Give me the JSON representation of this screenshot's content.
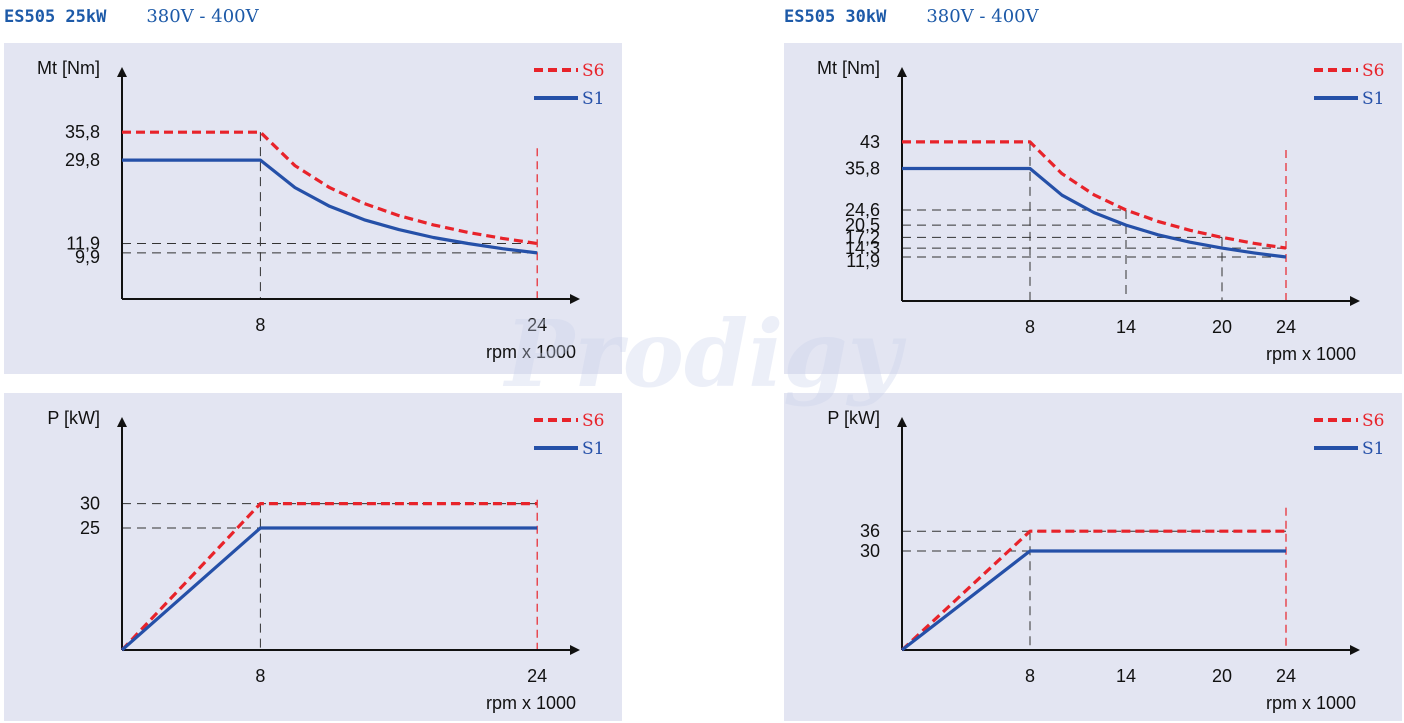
{
  "titles": [
    {
      "model": "ES505  25kW",
      "voltage": "380V - 400V"
    },
    {
      "model": "ES505  30kW",
      "voltage": "380V - 400V"
    }
  ],
  "watermark": "Prodigy",
  "colors": {
    "s6": "#e8232a",
    "s1": "#2550a8",
    "panel": "#e3e5f2",
    "title": "#1d5aa8"
  },
  "chart_data": [
    {
      "type": "line",
      "ylabel": "Mt [Nm]",
      "xlabel": "rpm x 1000",
      "xticks": [
        8,
        24
      ],
      "yticks": [
        "35,8",
        "29,8",
        "11,9",
        "9,9"
      ],
      "xlim": [
        0,
        30
      ],
      "ylim": [
        0,
        42
      ],
      "legend": "top-right",
      "series": [
        {
          "name": "S6",
          "style": "dashed",
          "points": [
            [
              0,
              35.8
            ],
            [
              8,
              35.8
            ],
            [
              10,
              28.6
            ],
            [
              12,
              23.9
            ],
            [
              14,
              20.5
            ],
            [
              16,
              17.9
            ],
            [
              18,
              15.9
            ],
            [
              20,
              14.3
            ],
            [
              22,
              13.0
            ],
            [
              24,
              11.9
            ]
          ]
        },
        {
          "name": "S1",
          "style": "solid",
          "points": [
            [
              0,
              29.8
            ],
            [
              8,
              29.8
            ],
            [
              10,
              23.9
            ],
            [
              12,
              19.9
            ],
            [
              14,
              17.0
            ],
            [
              16,
              14.9
            ],
            [
              18,
              13.2
            ],
            [
              20,
              11.9
            ],
            [
              22,
              10.8
            ],
            [
              24,
              9.9
            ]
          ]
        }
      ],
      "guides": {
        "h": [
          11.9,
          9.9
        ],
        "v": [
          8
        ]
      }
    },
    {
      "type": "line",
      "ylabel": "Mt [Nm]",
      "xlabel": "rpm x 1000",
      "xticks": [
        8,
        14,
        20,
        24
      ],
      "yticks": [
        "43",
        "35,8",
        "24,6",
        "20,5",
        "17,2",
        "14,3",
        "11,9"
      ],
      "xlim": [
        0,
        28
      ],
      "ylim": [
        0,
        53
      ],
      "legend": "top-right",
      "series": [
        {
          "name": "S6",
          "style": "dashed",
          "points": [
            [
              0,
              43
            ],
            [
              8,
              43
            ],
            [
              10,
              34.4
            ],
            [
              12,
              28.7
            ],
            [
              14,
              24.6
            ],
            [
              16,
              21.5
            ],
            [
              18,
              19.1
            ],
            [
              20,
              17.2
            ],
            [
              22,
              15.6
            ],
            [
              24,
              14.3
            ]
          ]
        },
        {
          "name": "S1",
          "style": "solid",
          "points": [
            [
              0,
              35.8
            ],
            [
              8,
              35.8
            ],
            [
              10,
              28.6
            ],
            [
              12,
              23.9
            ],
            [
              14,
              20.5
            ],
            [
              16,
              17.9
            ],
            [
              18,
              15.9
            ],
            [
              20,
              14.3
            ],
            [
              22,
              13.0
            ],
            [
              24,
              11.9
            ]
          ]
        }
      ],
      "guides": {
        "h": [
          24.6,
          20.5,
          17.2,
          14.3,
          11.9
        ],
        "v": [
          8,
          14,
          20
        ]
      }
    },
    {
      "type": "line",
      "ylabel": "P [kW]",
      "xlabel": "rpm x 1000",
      "xticks": [
        8,
        24
      ],
      "yticks": [
        "30",
        "25"
      ],
      "xlim": [
        0,
        30
      ],
      "ylim": [
        0,
        40
      ],
      "legend": "top-right",
      "series": [
        {
          "name": "S6",
          "style": "dashed",
          "points": [
            [
              0,
              0
            ],
            [
              8,
              30
            ],
            [
              24,
              30
            ]
          ]
        },
        {
          "name": "S1",
          "style": "solid",
          "points": [
            [
              0,
              0
            ],
            [
              8,
              25
            ],
            [
              24,
              25
            ]
          ]
        }
      ],
      "guides": {
        "h": [
          30,
          25
        ],
        "v": [
          8
        ]
      }
    },
    {
      "type": "line",
      "ylabel": "P [kW]",
      "xlabel": "rpm x 1000",
      "xticks": [
        8,
        14,
        20,
        24
      ],
      "yticks": [
        "36",
        "30"
      ],
      "xlim": [
        0,
        28
      ],
      "ylim": [
        0,
        56
      ],
      "legend": "top-right",
      "series": [
        {
          "name": "S6",
          "style": "dashed",
          "points": [
            [
              0,
              0
            ],
            [
              8,
              36
            ],
            [
              24,
              36
            ]
          ]
        },
        {
          "name": "S1",
          "style": "solid",
          "points": [
            [
              0,
              0
            ],
            [
              8,
              30
            ],
            [
              24,
              30
            ]
          ]
        }
      ],
      "guides": {
        "h": [
          36,
          30
        ],
        "v": [
          8,
          14,
          20
        ]
      }
    }
  ]
}
